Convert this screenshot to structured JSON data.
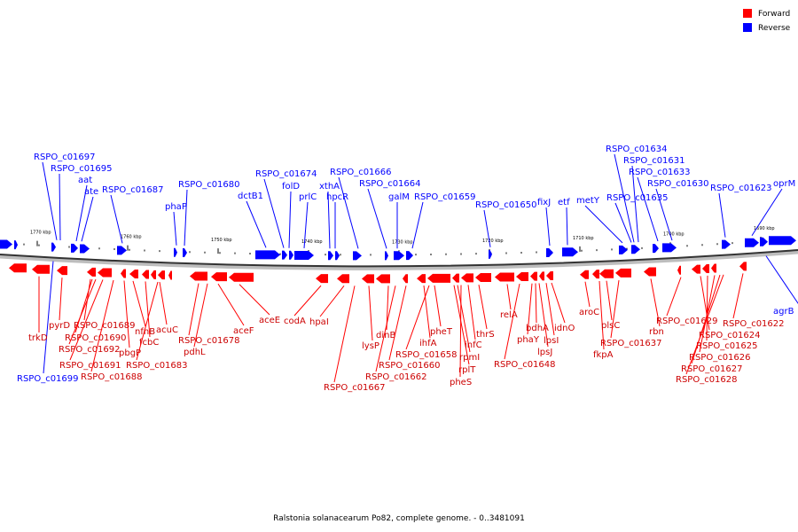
{
  "caption": "Ralstonia solanacearum Po82, complete genome. - 0..3481091",
  "legend": [
    {
      "label": "Forward",
      "color": "#ff0000"
    },
    {
      "label": "Reverse",
      "color": "#0000ff"
    }
  ],
  "ticks": [
    "1770 kbp",
    "1760 kbp",
    "1750 kbp",
    "1740 kbp",
    "1730 kbp",
    "1720 kbp",
    "1710 kbp",
    "1700 kbp",
    "1690 kbp"
  ],
  "reverse_labels": [
    "RSPO_c01697",
    "RSPO_c01695",
    "aat",
    "ate",
    "RSPO_c01687",
    "phaP",
    "RSPO_c01680",
    "dctB1",
    "RSPO_c01674",
    "folD",
    "prlC",
    "xthA",
    "hpcR",
    "RSPO_c01666",
    "RSPO_c01664",
    "galM",
    "RSPO_c01659",
    "RSPO_c01650",
    "fixJ",
    "etf",
    "metY",
    "RSPO_c01634",
    "RSPO_c01631",
    "RSPO_c01633",
    "RSPO_c01635",
    "RSPO_c01630",
    "RSPO_c01623",
    "oprM",
    "RSPO_c01699",
    "agrB"
  ],
  "forward_labels": [
    "trkD",
    "pyrD",
    "RSPO_c01689",
    "RSPO_c01690",
    "RSPO_c01692",
    "RSPO_c01691",
    "RSPO_c01688",
    "pbgP",
    "nfnB",
    "fcbC",
    "acuC",
    "RSPO_c01683",
    "RSPO_c01678",
    "pdhL",
    "aceF",
    "aceE",
    "codA",
    "hpaI",
    "RSPO_c01667",
    "lysP",
    "dinB",
    "RSPO_c01660",
    "RSPO_c01662",
    "ihfA",
    "RSPO_c01658",
    "pheT",
    "rplT",
    "pheS",
    "rpmI",
    "infC",
    "thrS",
    "relA",
    "RSPO_c01648",
    "phaY",
    "bdhA",
    "lpsJ",
    "lpsI",
    "idnO",
    "aroC",
    "fkpA",
    "plsC",
    "RSPO_c01637",
    "rbn",
    "RSPO_c01629",
    "RSPO_c01624",
    "RSPO_c01625",
    "RSPO_c01626",
    "RSPO_c01627",
    "RSPO_c01628",
    "RSPO_c01622"
  ]
}
